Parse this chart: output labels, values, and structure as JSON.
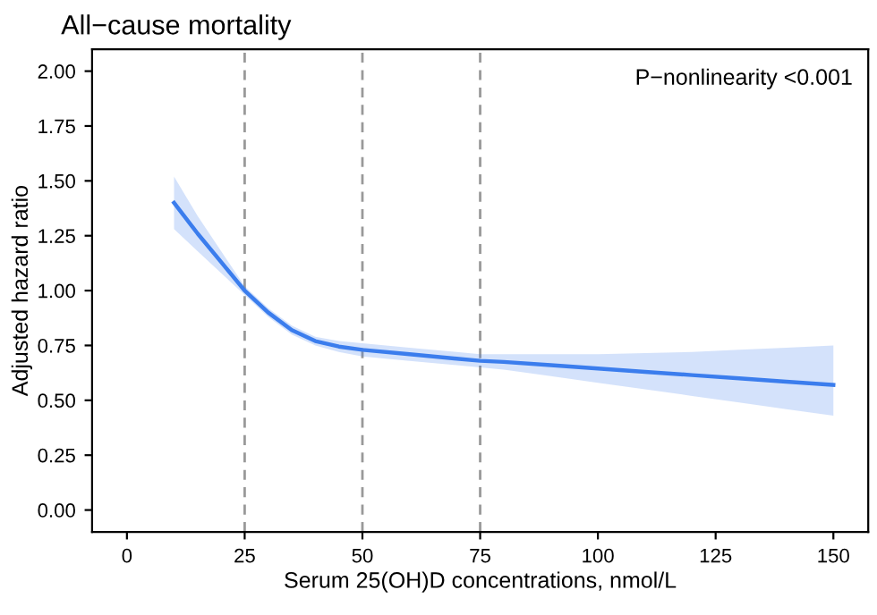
{
  "chart_data": {
    "type": "line",
    "title": "All−cause mortality",
    "xlabel": "Serum 25(OH)D concentrations, nmol/L",
    "ylabel": "Adjusted hazard ratio",
    "annotations": [
      "P−nonlinearity <0.001"
    ],
    "series": [
      {
        "color": "#3b7ded",
        "x": [
          10,
          15,
          20,
          25,
          30,
          35,
          40,
          45,
          50,
          60,
          70,
          75,
          80,
          90,
          100,
          110,
          120,
          130,
          140,
          150
        ],
        "values": [
          1.4,
          1.26,
          1.13,
          1.0,
          0.9,
          0.82,
          0.77,
          0.745,
          0.73,
          0.71,
          0.69,
          0.68,
          0.675,
          0.66,
          0.645,
          0.63,
          0.615,
          0.6,
          0.585,
          0.57
        ],
        "lower": [
          1.28,
          1.18,
          1.08,
          0.98,
          0.88,
          0.8,
          0.75,
          0.72,
          0.7,
          0.68,
          0.66,
          0.65,
          0.64,
          0.61,
          0.58,
          0.55,
          0.52,
          0.49,
          0.46,
          0.43
        ],
        "upper": [
          1.52,
          1.34,
          1.18,
          1.02,
          0.92,
          0.84,
          0.79,
          0.77,
          0.76,
          0.74,
          0.72,
          0.71,
          0.71,
          0.71,
          0.71,
          0.715,
          0.72,
          0.73,
          0.74,
          0.75
        ]
      }
    ],
    "xlim": [
      -7.4,
      157.4
    ],
    "xticks": [
      0,
      25,
      50,
      75,
      100,
      125,
      150
    ],
    "ylim": [
      -0.1,
      2.1
    ],
    "yticks": [
      {
        "value": 0,
        "label": "0.00"
      },
      {
        "value": 0.25,
        "label": "0.25"
      },
      {
        "value": 0.5,
        "label": "0.50"
      },
      {
        "value": 0.75,
        "label": "0.75"
      },
      {
        "value": 1,
        "label": "1.00"
      },
      {
        "value": 1.25,
        "label": "1.25"
      },
      {
        "value": 1.5,
        "label": "1.50"
      },
      {
        "value": 1.75,
        "label": "1.75"
      },
      {
        "value": 2,
        "label": "2.00"
      }
    ],
    "ref_lines": [
      {
        "axis": "x",
        "value": 25,
        "color": "#999999",
        "line_style": "dashed"
      },
      {
        "axis": "x",
        "value": 50,
        "color": "#999999",
        "line_style": "dashed"
      },
      {
        "axis": "x",
        "value": 75,
        "color": "#999999",
        "line_style": "dashed"
      }
    ],
    "grid": false,
    "legend": false
  }
}
